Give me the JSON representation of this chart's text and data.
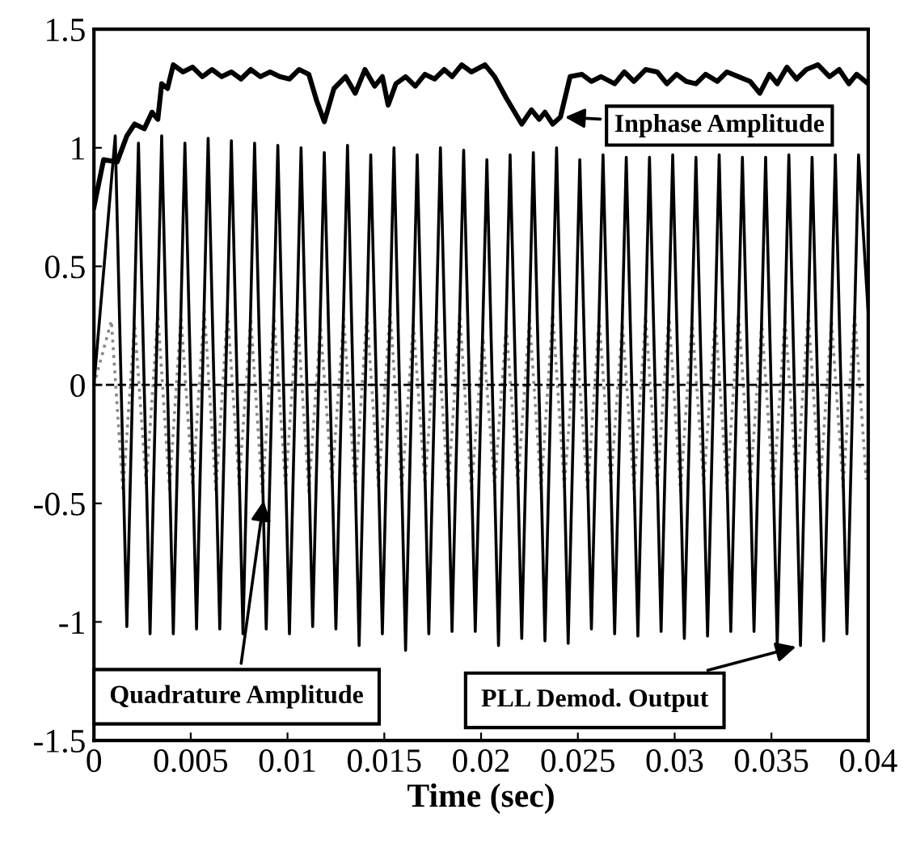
{
  "chart_data": {
    "type": "line",
    "xlabel": "Time (sec)",
    "xlim": [
      0,
      0.04
    ],
    "ylim": [
      -1.5,
      1.5
    ],
    "xticks": [
      0,
      0.005,
      0.01,
      0.015,
      0.02,
      0.025,
      0.03,
      0.035,
      0.04
    ],
    "yticks": [
      -1.5,
      -1,
      -0.5,
      0,
      0.5,
      1,
      1.5
    ],
    "grid": false,
    "legend": false,
    "marker": "none",
    "line_style": "solid",
    "ref_lines": [
      {
        "axis": "y",
        "value": 0,
        "color": "#000000",
        "line_style": "dashed"
      }
    ],
    "annotations": [
      {
        "text": "Inphase Amplitude",
        "x": 0.0241,
        "y": 1.13
      },
      {
        "text": "Quadrature Amplitude",
        "x": 0.0088,
        "y": -0.47
      },
      {
        "text": "PLL Demod. Output",
        "x": 0.0365,
        "y": -1.1
      }
    ],
    "series": [
      {
        "color": "#888888",
        "line_style": "dotted",
        "x": [
          0,
          0.0009,
          0.0015,
          0.0021,
          0.0027,
          0.0033,
          0.0039,
          0.0045,
          0.0051,
          0.0057,
          0.0063,
          0.0069,
          0.0075,
          0.0081,
          0.0087,
          0.0093,
          0.0099,
          0.0105,
          0.0111,
          0.0117,
          0.0123,
          0.0129,
          0.0135,
          0.0141,
          0.0147,
          0.0153,
          0.0159,
          0.0165,
          0.0171,
          0.0177,
          0.0183,
          0.0189,
          0.0195,
          0.0201,
          0.0207,
          0.0213,
          0.0219,
          0.0225,
          0.0231,
          0.0237,
          0.0243,
          0.0249,
          0.0255,
          0.0261,
          0.0267,
          0.0273,
          0.0279,
          0.0285,
          0.0291,
          0.0297,
          0.0303,
          0.0309,
          0.0315,
          0.0321,
          0.0327,
          0.0333,
          0.0339,
          0.0345,
          0.0351,
          0.0357,
          0.0363,
          0.0369,
          0.0375,
          0.0381,
          0.0387,
          0.0393,
          0.0399
        ],
        "values": [
          0,
          0.27,
          -0.45,
          0.26,
          -0.42,
          0.3,
          -0.44,
          0.29,
          -0.43,
          0.32,
          -0.45,
          0.31,
          -0.42,
          0.28,
          -0.46,
          0.29,
          -0.43,
          0.3,
          -0.45,
          0.25,
          -0.41,
          0.28,
          -0.44,
          0.3,
          -0.43,
          0.32,
          -0.45,
          0.26,
          -0.42,
          0.27,
          -0.44,
          0.3,
          -0.45,
          0.2,
          -0.43,
          0.25,
          -0.42,
          0.28,
          -0.44,
          0.3,
          -0.43,
          0.22,
          -0.45,
          0.28,
          -0.42,
          0.26,
          -0.44,
          0.29,
          -0.43,
          0.3,
          -0.45,
          0.27,
          -0.42,
          0.28,
          -0.44,
          0.3,
          -0.43,
          0.26,
          -0.45,
          0.28,
          -0.42,
          0.3,
          -0.44,
          0.27,
          -0.43,
          0.3,
          -0.4
        ]
      },
      {
        "color": "#000000",
        "x": [
          0,
          0.0011,
          0.0017,
          0.0023,
          0.0029,
          0.0035,
          0.0041,
          0.0047,
          0.0053,
          0.0059,
          0.0065,
          0.0071,
          0.0077,
          0.0083,
          0.0089,
          0.0095,
          0.0101,
          0.0107,
          0.0113,
          0.0119,
          0.0125,
          0.0131,
          0.0137,
          0.0143,
          0.0149,
          0.0155,
          0.0161,
          0.0167,
          0.0173,
          0.0179,
          0.0185,
          0.0191,
          0.0197,
          0.0203,
          0.0209,
          0.0215,
          0.0221,
          0.0227,
          0.0233,
          0.0239,
          0.0245,
          0.0251,
          0.0257,
          0.0263,
          0.0269,
          0.0275,
          0.0281,
          0.0287,
          0.0293,
          0.0299,
          0.0305,
          0.0311,
          0.0317,
          0.0323,
          0.0329,
          0.0335,
          0.0341,
          0.0347,
          0.0353,
          0.0359,
          0.0365,
          0.0371,
          0.0377,
          0.0383,
          0.0389,
          0.0395,
          0.04
        ],
        "values": [
          0,
          1.05,
          -1.02,
          1.02,
          -1.05,
          1.05,
          -1.05,
          1.02,
          -1.03,
          1.04,
          -1.03,
          1.03,
          -1.05,
          1.02,
          -1.03,
          1.01,
          -1.05,
          1.0,
          -1.02,
          0.98,
          -1.03,
          1.01,
          -1.1,
          0.97,
          -1.05,
          1.0,
          -1.12,
          0.97,
          -1.05,
          1.0,
          -1.04,
          0.99,
          -1.04,
          0.95,
          -1.1,
          0.97,
          -1.07,
          0.98,
          -1.08,
          1.0,
          -1.09,
          0.95,
          -1.03,
          0.97,
          -1.05,
          0.96,
          -1.06,
          0.96,
          -1.04,
          0.97,
          -1.07,
          0.96,
          -1.06,
          0.97,
          -1.04,
          0.96,
          -1.04,
          0.96,
          -1.1,
          0.97,
          -1.1,
          0.96,
          -1.08,
          0.97,
          -1.05,
          0.97,
          0.3
        ]
      },
      {
        "color": "#000000",
        "x": [
          0,
          0.0005,
          0.0012,
          0.0017,
          0.0021,
          0.0026,
          0.003,
          0.0033,
          0.0035,
          0.0038,
          0.0041,
          0.0046,
          0.0051,
          0.0056,
          0.0061,
          0.0066,
          0.0071,
          0.0076,
          0.0081,
          0.0086,
          0.0091,
          0.0096,
          0.0101,
          0.0106,
          0.0111,
          0.0115,
          0.0119,
          0.0124,
          0.013,
          0.0135,
          0.014,
          0.0145,
          0.0149,
          0.0152,
          0.0156,
          0.0161,
          0.0166,
          0.0171,
          0.0176,
          0.0181,
          0.0185,
          0.019,
          0.0195,
          0.0202,
          0.0207,
          0.0213,
          0.0221,
          0.0226,
          0.023,
          0.0233,
          0.0237,
          0.0241,
          0.0246,
          0.0252,
          0.0257,
          0.0262,
          0.0269,
          0.0274,
          0.0279,
          0.0285,
          0.0291,
          0.0296,
          0.0301,
          0.0306,
          0.0311,
          0.0316,
          0.0322,
          0.0327,
          0.0333,
          0.0339,
          0.0344,
          0.0349,
          0.0353,
          0.0358,
          0.0363,
          0.0368,
          0.0374,
          0.038,
          0.0385,
          0.039,
          0.0394,
          0.04
        ],
        "values": [
          0.75,
          0.95,
          0.94,
          1.05,
          1.1,
          1.08,
          1.15,
          1.12,
          1.27,
          1.25,
          1.35,
          1.32,
          1.34,
          1.3,
          1.33,
          1.3,
          1.32,
          1.29,
          1.33,
          1.3,
          1.32,
          1.3,
          1.29,
          1.33,
          1.31,
          1.2,
          1.11,
          1.25,
          1.3,
          1.23,
          1.33,
          1.26,
          1.3,
          1.18,
          1.27,
          1.3,
          1.26,
          1.31,
          1.29,
          1.33,
          1.3,
          1.35,
          1.32,
          1.35,
          1.3,
          1.21,
          1.1,
          1.16,
          1.12,
          1.15,
          1.1,
          1.13,
          1.3,
          1.31,
          1.28,
          1.3,
          1.27,
          1.32,
          1.28,
          1.33,
          1.32,
          1.27,
          1.31,
          1.28,
          1.27,
          1.31,
          1.28,
          1.32,
          1.3,
          1.28,
          1.23,
          1.31,
          1.27,
          1.34,
          1.29,
          1.33,
          1.35,
          1.3,
          1.33,
          1.27,
          1.31,
          1.27
        ]
      }
    ]
  }
}
